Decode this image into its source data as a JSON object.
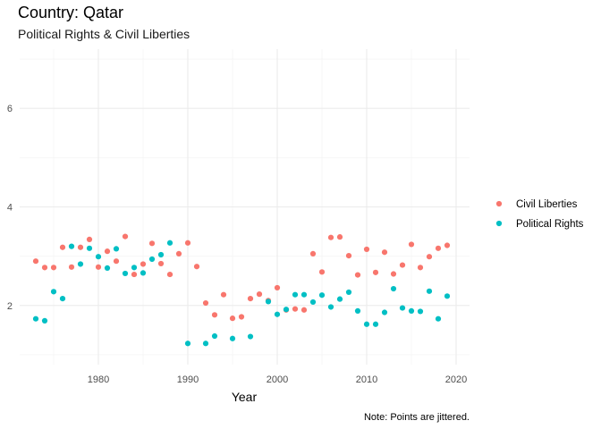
{
  "chart_data": {
    "type": "scatter",
    "title": "Country: Qatar",
    "subtitle": "Political Rights & Civil Liberties",
    "xlabel": "Year",
    "ylabel": "",
    "caption": "Note: Points are jittered.",
    "xlim": [
      1971.2,
      2021.5
    ],
    "ylim": [
      0.8,
      7.2
    ],
    "xticks": [
      1980,
      1990,
      2000,
      2010,
      2020
    ],
    "yticks": [
      2,
      4,
      6
    ],
    "grid": true,
    "legend_position": "right",
    "series": [
      {
        "name": "Civil Liberties",
        "color": "#F8766D",
        "points": [
          [
            1973,
            2.9
          ],
          [
            1974,
            2.77
          ],
          [
            1975,
            2.77
          ],
          [
            1976,
            3.18
          ],
          [
            1977,
            2.78
          ],
          [
            1978,
            3.18
          ],
          [
            1979,
            3.34
          ],
          [
            1980,
            2.78
          ],
          [
            1981,
            3.1
          ],
          [
            1982,
            2.9
          ],
          [
            1983,
            3.4
          ],
          [
            1984,
            2.63
          ],
          [
            1985,
            2.84
          ],
          [
            1986,
            3.26
          ],
          [
            1987,
            2.85
          ],
          [
            1988,
            2.63
          ],
          [
            1989,
            3.05
          ],
          [
            1990,
            3.27
          ],
          [
            1991,
            2.79
          ],
          [
            1992,
            2.05
          ],
          [
            1993,
            1.81
          ],
          [
            1994,
            2.22
          ],
          [
            1995,
            1.74
          ],
          [
            1996,
            1.77
          ],
          [
            1997,
            2.14
          ],
          [
            1998,
            2.23
          ],
          [
            1999,
            2.1
          ],
          [
            2000,
            2.36
          ],
          [
            2001,
            1.91
          ],
          [
            2002,
            1.93
          ],
          [
            2003,
            1.91
          ],
          [
            2004,
            3.05
          ],
          [
            2005,
            2.68
          ],
          [
            2006,
            3.38
          ],
          [
            2007,
            3.39
          ],
          [
            2008,
            3.01
          ],
          [
            2009,
            2.62
          ],
          [
            2010,
            3.14
          ],
          [
            2011,
            2.67
          ],
          [
            2012,
            3.08
          ],
          [
            2013,
            2.64
          ],
          [
            2014,
            2.82
          ],
          [
            2015,
            3.24
          ],
          [
            2016,
            2.77
          ],
          [
            2017,
            2.99
          ],
          [
            2018,
            3.16
          ],
          [
            2019,
            3.22
          ]
        ]
      },
      {
        "name": "Political Rights",
        "color": "#00BFC4",
        "points": [
          [
            1973,
            1.73
          ],
          [
            1974,
            1.69
          ],
          [
            1975,
            2.28
          ],
          [
            1976,
            2.14
          ],
          [
            1977,
            3.2
          ],
          [
            1978,
            2.84
          ],
          [
            1979,
            3.16
          ],
          [
            1980,
            2.99
          ],
          [
            1981,
            2.76
          ],
          [
            1982,
            3.15
          ],
          [
            1983,
            2.65
          ],
          [
            1984,
            2.77
          ],
          [
            1985,
            2.66
          ],
          [
            1986,
            2.94
          ],
          [
            1987,
            3.03
          ],
          [
            1988,
            3.27
          ],
          [
            1990,
            1.23
          ],
          [
            1992,
            1.23
          ],
          [
            1993,
            1.38
          ],
          [
            1995,
            1.33
          ],
          [
            1997,
            1.37
          ],
          [
            1999,
            2.08
          ],
          [
            2000,
            1.82
          ],
          [
            2001,
            1.92
          ],
          [
            2002,
            2.22
          ],
          [
            2003,
            2.22
          ],
          [
            2004,
            2.07
          ],
          [
            2005,
            2.21
          ],
          [
            2006,
            1.97
          ],
          [
            2007,
            2.13
          ],
          [
            2008,
            2.27
          ],
          [
            2009,
            1.89
          ],
          [
            2010,
            1.62
          ],
          [
            2011,
            1.62
          ],
          [
            2012,
            1.86
          ],
          [
            2013,
            2.34
          ],
          [
            2014,
            1.95
          ],
          [
            2015,
            1.89
          ],
          [
            2016,
            1.88
          ],
          [
            2017,
            2.29
          ],
          [
            2018,
            1.73
          ],
          [
            2019,
            2.19
          ]
        ]
      }
    ]
  }
}
